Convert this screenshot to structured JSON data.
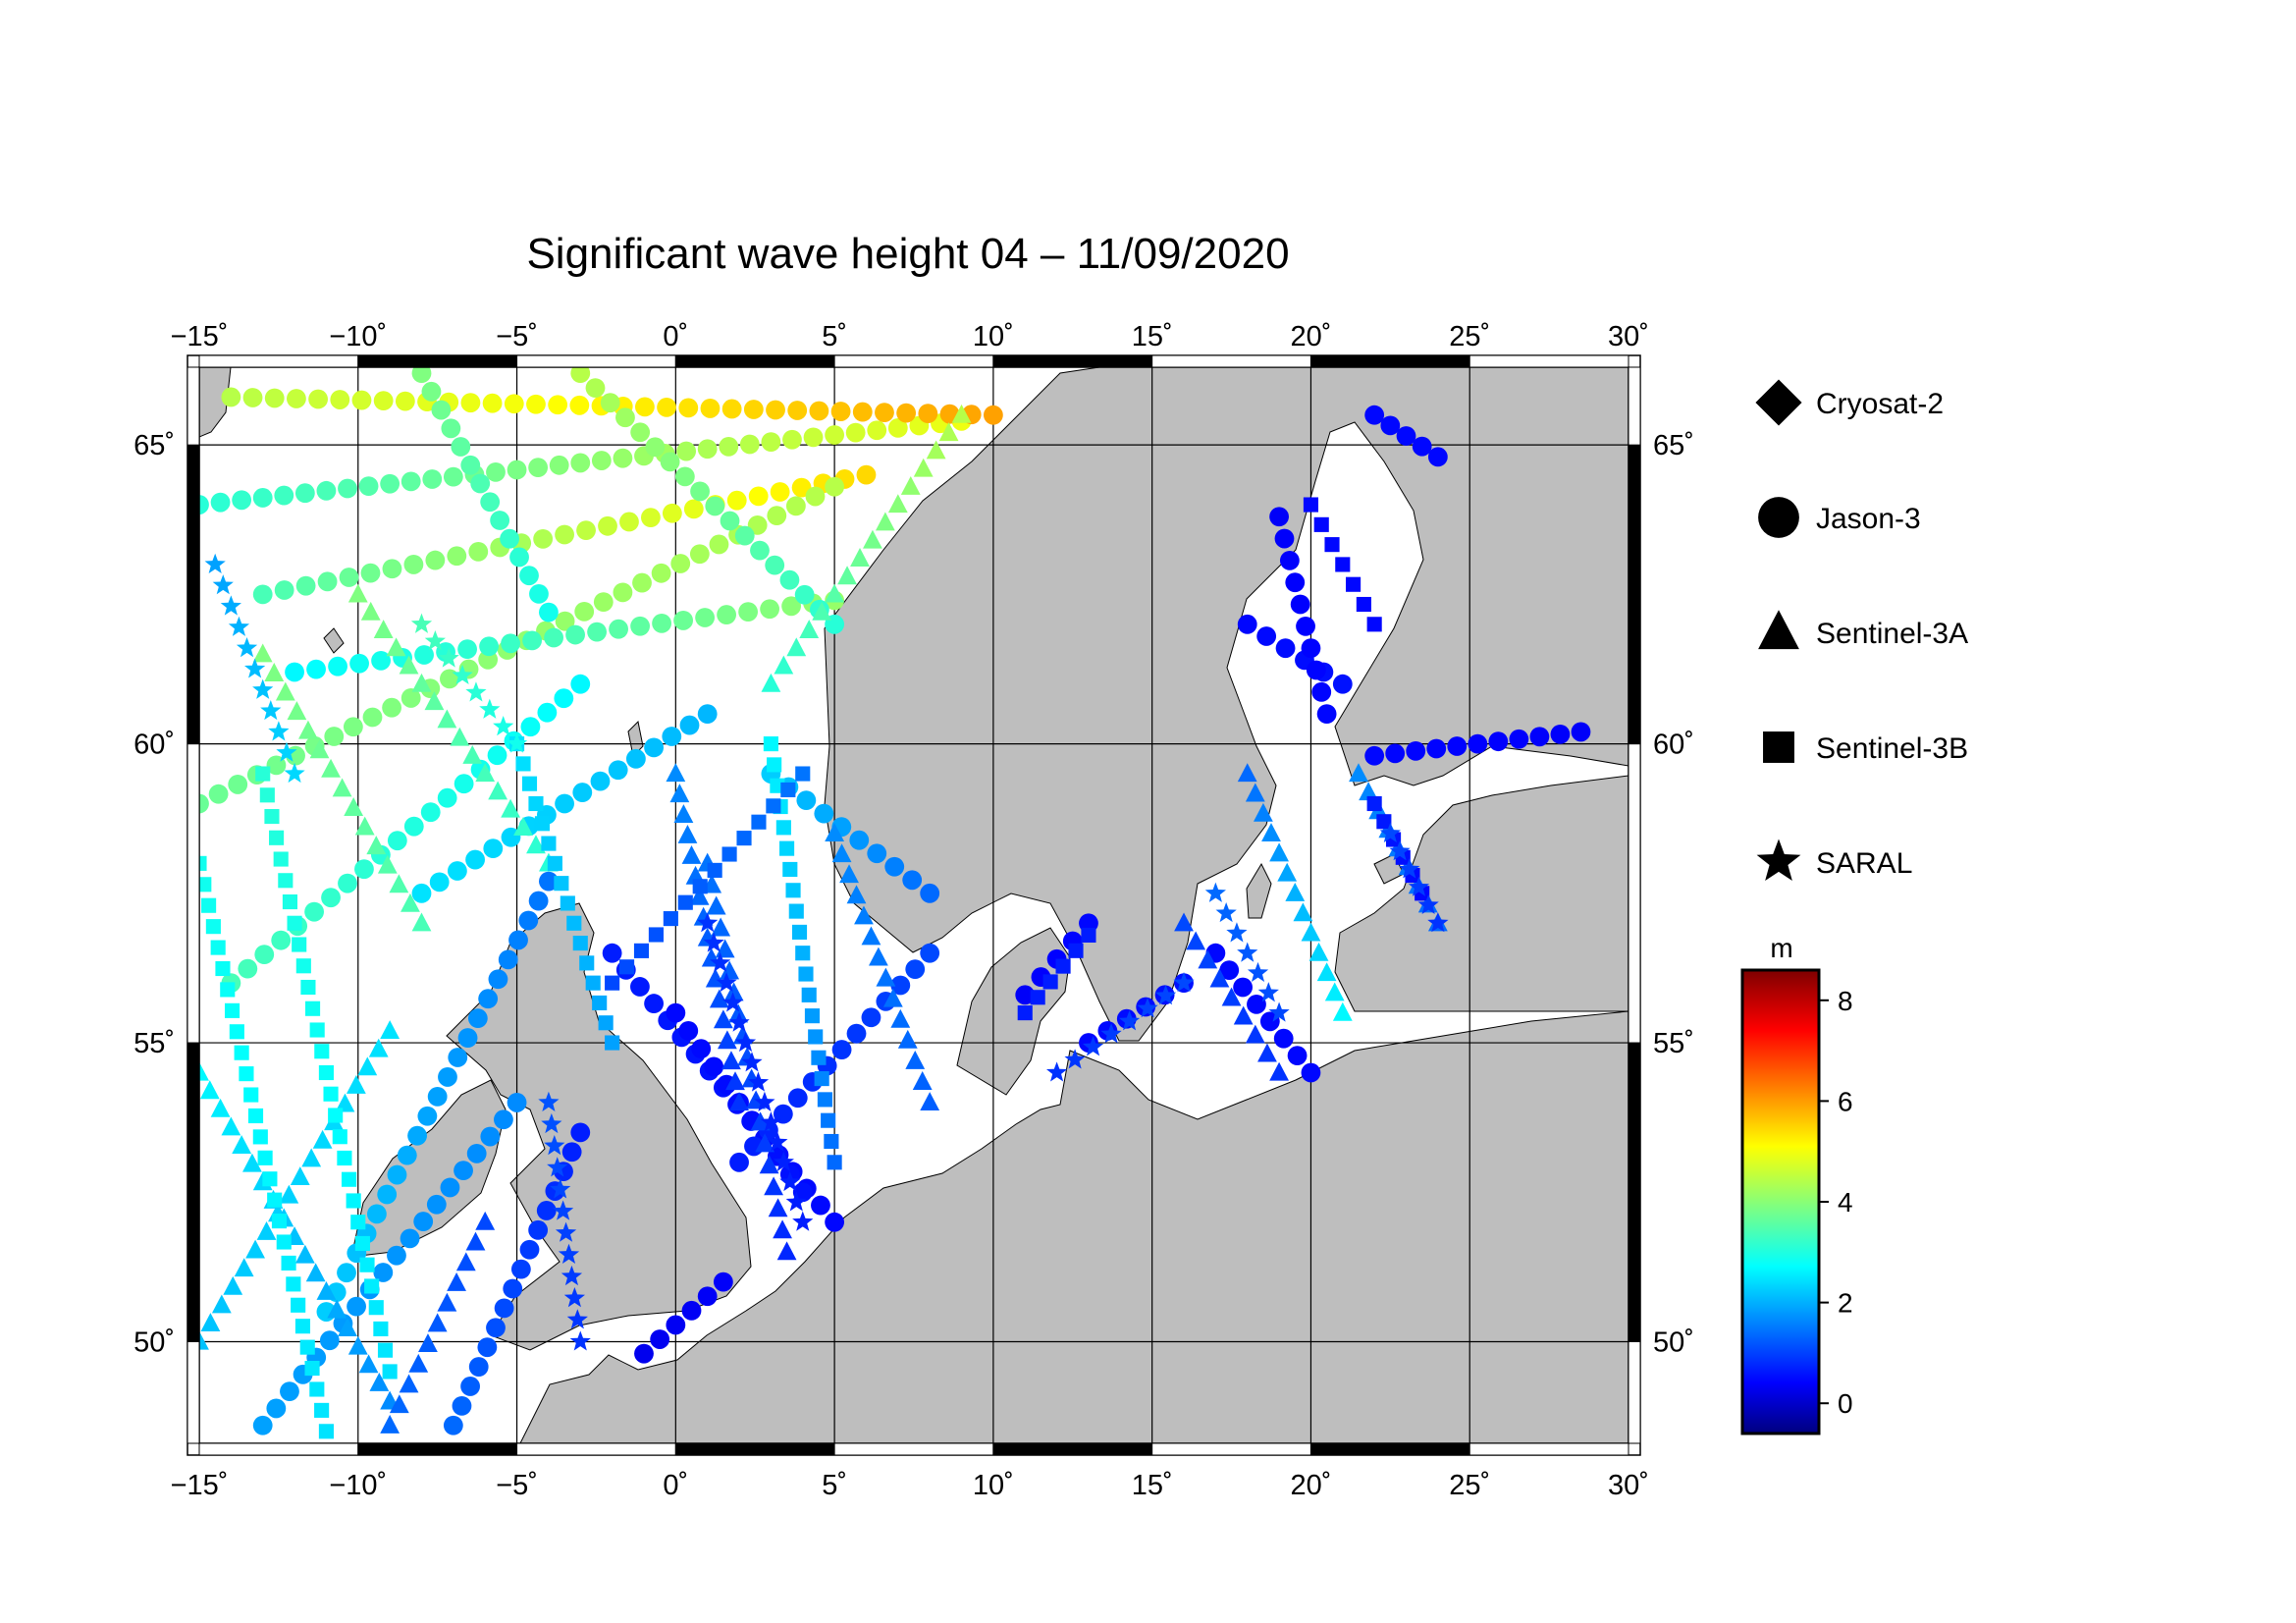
{
  "title": "Significant wave height 04 – 11/09/2020",
  "map": {
    "lon_range": [
      -15,
      30
    ],
    "lat_range": [
      48.3,
      66.3
    ],
    "lon_ticks": [
      -15,
      -10,
      -5,
      0,
      5,
      10,
      15,
      20,
      25,
      30
    ],
    "lat_ticks": [
      50,
      55,
      60,
      65
    ],
    "lon_tick_labels": [
      "−15˚",
      "−10˚",
      "−5˚",
      "0˚",
      "5˚",
      "10˚",
      "15˚",
      "20˚",
      "25˚",
      "30˚"
    ],
    "lat_tick_labels": [
      "50˚",
      "55˚",
      "60˚",
      "65˚"
    ],
    "land_color": "#bebebe",
    "sea_color": "#ffffff",
    "grid": true
  },
  "legend": [
    {
      "name": "Cryosat-2",
      "symbol": "diamond"
    },
    {
      "name": "Jason-3",
      "symbol": "circle"
    },
    {
      "name": "Sentinel-3A",
      "symbol": "triangle"
    },
    {
      "name": "Sentinel-3B",
      "symbol": "square"
    },
    {
      "name": "SARAL",
      "symbol": "star"
    }
  ],
  "colorbar": {
    "unit": "m",
    "range": [
      -0.6,
      8.6
    ],
    "ticks": [
      0,
      2,
      4,
      6,
      8
    ],
    "tick_labels": [
      "0",
      "2",
      "4",
      "6",
      "8"
    ],
    "colormap": "jet"
  },
  "chart_data": {
    "type": "scatter",
    "x_label": "",
    "y_label": "",
    "tracks": [
      {
        "sat": "circle",
        "start": [
          -15,
          64.0
        ],
        "end": [
          9,
          65.4
        ],
        "h0": 3.2,
        "h1": 5.0
      },
      {
        "sat": "circle",
        "start": [
          -14,
          65.8
        ],
        "end": [
          10,
          65.5
        ],
        "h0": 4.5,
        "h1": 6.0
      },
      {
        "sat": "circle",
        "start": [
          -13,
          62.5
        ],
        "end": [
          6,
          64.5
        ],
        "h0": 3.5,
        "h1": 5.5
      },
      {
        "sat": "circle",
        "start": [
          -15,
          59.0
        ],
        "end": [
          5,
          64.3
        ],
        "h0": 3.8,
        "h1": 4.5
      },
      {
        "sat": "circle",
        "start": [
          -8,
          66.2
        ],
        "end": [
          -4,
          62.2
        ],
        "h0": 4.0,
        "h1": 3.0
      },
      {
        "sat": "circle",
        "start": [
          -12,
          61.2
        ],
        "end": [
          5,
          62.4
        ],
        "h0": 2.8,
        "h1": 4.2
      },
      {
        "sat": "circle",
        "start": [
          -3,
          66.2
        ],
        "end": [
          5,
          62.0
        ],
        "h0": 4.5,
        "h1": 3.2
      },
      {
        "sat": "circle",
        "start": [
          -11,
          50.5
        ],
        "end": [
          -4,
          57.7
        ],
        "h0": 2.4,
        "h1": 1.6
      },
      {
        "sat": "circle",
        "start": [
          -14,
          56.0
        ],
        "end": [
          -3,
          61.0
        ],
        "h0": 3.5,
        "h1": 2.8
      },
      {
        "sat": "circle",
        "start": [
          -13,
          48.6
        ],
        "end": [
          -5,
          54.0
        ],
        "h0": 2.0,
        "h1": 1.8
      },
      {
        "sat": "circle",
        "start": [
          -8,
          57.5
        ],
        "end": [
          1,
          60.5
        ],
        "h0": 2.6,
        "h1": 2.2
      },
      {
        "sat": "circle",
        "start": [
          -7,
          48.6
        ],
        "end": [
          -3,
          53.5
        ],
        "h0": 1.5,
        "h1": 0.8
      },
      {
        "sat": "circle",
        "start": [
          -2,
          56.5
        ],
        "end": [
          5,
          52.0
        ],
        "h0": 0.8,
        "h1": 0.6
      },
      {
        "sat": "circle",
        "start": [
          0,
          55.5
        ],
        "end": [
          4,
          52.5
        ],
        "h0": 0.6,
        "h1": 0.7
      },
      {
        "sat": "circle",
        "start": [
          2,
          53.0
        ],
        "end": [
          8,
          56.5
        ],
        "h0": 0.8,
        "h1": 1.2
      },
      {
        "sat": "circle",
        "start": [
          3,
          59.5
        ],
        "end": [
          8,
          57.5
        ],
        "h0": 2.4,
        "h1": 1.5
      },
      {
        "sat": "circle",
        "start": [
          -1,
          49.8
        ],
        "end": [
          1.5,
          51.0
        ],
        "h0": 0.4,
        "h1": 0.5
      },
      {
        "sat": "circle",
        "start": [
          11,
          55.8
        ],
        "end": [
          13,
          57.0
        ],
        "h0": 0.5,
        "h1": 0.6
      },
      {
        "sat": "circle",
        "start": [
          13,
          55.0
        ],
        "end": [
          16,
          56.0
        ],
        "h0": 0.6,
        "h1": 0.7
      },
      {
        "sat": "circle",
        "start": [
          17,
          56.5
        ],
        "end": [
          20,
          54.5
        ],
        "h0": 0.6,
        "h1": 0.6
      },
      {
        "sat": "circle",
        "start": [
          22,
          59.8
        ],
        "end": [
          28.5,
          60.2
        ],
        "h0": 0.6,
        "h1": 0.5
      },
      {
        "sat": "circle",
        "start": [
          18,
          62.0
        ],
        "end": [
          21,
          61.0
        ],
        "h0": 0.6,
        "h1": 0.7
      },
      {
        "sat": "circle",
        "start": [
          22,
          65.5
        ],
        "end": [
          24,
          64.8
        ],
        "h0": 0.6,
        "h1": 0.6
      },
      {
        "sat": "circle",
        "start": [
          19,
          63.8
        ],
        "end": [
          20.5,
          60.5
        ],
        "h0": 0.5,
        "h1": 0.6
      },
      {
        "sat": "triangle",
        "start": [
          -15,
          50.0
        ],
        "end": [
          -9,
          55.2
        ],
        "h0": 2.3,
        "h1": 2.6
      },
      {
        "sat": "triangle",
        "start": [
          -15,
          54.5
        ],
        "end": [
          -9,
          49.0
        ],
        "h0": 2.8,
        "h1": 1.8
      },
      {
        "sat": "triangle",
        "start": [
          -9,
          48.6
        ],
        "end": [
          -6,
          52.0
        ],
        "h0": 1.5,
        "h1": 1.2
      },
      {
        "sat": "triangle",
        "start": [
          -13,
          61.5
        ],
        "end": [
          -8,
          57.0
        ],
        "h0": 4.0,
        "h1": 3.5
      },
      {
        "sat": "triangle",
        "start": [
          -10,
          62.5
        ],
        "end": [
          -4,
          58.0
        ],
        "h0": 4.0,
        "h1": 3.2
      },
      {
        "sat": "triangle",
        "start": [
          0,
          59.5
        ],
        "end": [
          2,
          54.0
        ],
        "h0": 1.8,
        "h1": 1.0
      },
      {
        "sat": "triangle",
        "start": [
          1,
          58.0
        ],
        "end": [
          3.5,
          51.5
        ],
        "h0": 1.6,
        "h1": 0.9
      },
      {
        "sat": "triangle",
        "start": [
          5,
          58.5
        ],
        "end": [
          8,
          54.0
        ],
        "h0": 1.8,
        "h1": 1.4
      },
      {
        "sat": "triangle",
        "start": [
          18,
          59.5
        ],
        "end": [
          21,
          55.5
        ],
        "h0": 1.5,
        "h1": 2.8
      },
      {
        "sat": "triangle",
        "start": [
          21.5,
          59.5
        ],
        "end": [
          24,
          57.0
        ],
        "h0": 1.8,
        "h1": 1.5
      },
      {
        "sat": "triangle",
        "start": [
          16,
          57.0
        ],
        "end": [
          19,
          54.5
        ],
        "h0": 1.2,
        "h1": 1.0
      },
      {
        "sat": "triangle",
        "start": [
          3,
          61.0
        ],
        "end": [
          9,
          65.5
        ],
        "h0": 3.2,
        "h1": 4.5
      },
      {
        "sat": "square",
        "start": [
          -15,
          58.0
        ],
        "end": [
          -11,
          48.5
        ],
        "h0": 3.0,
        "h1": 2.6
      },
      {
        "sat": "square",
        "start": [
          -13,
          59.5
        ],
        "end": [
          -9,
          49.5
        ],
        "h0": 3.2,
        "h1": 2.6
      },
      {
        "sat": "square",
        "start": [
          -5,
          60.0
        ],
        "end": [
          -2,
          55.0
        ],
        "h0": 2.6,
        "h1": 2.0
      },
      {
        "sat": "square",
        "start": [
          3,
          60.0
        ],
        "end": [
          5,
          53.0
        ],
        "h0": 2.8,
        "h1": 1.5
      },
      {
        "sat": "square",
        "start": [
          -2,
          56.0
        ],
        "end": [
          4,
          59.5
        ],
        "h0": 1.2,
        "h1": 1.6
      },
      {
        "sat": "square",
        "start": [
          11,
          55.5
        ],
        "end": [
          13,
          56.8
        ],
        "h0": 0.8,
        "h1": 0.8
      },
      {
        "sat": "square",
        "start": [
          20,
          64.0
        ],
        "end": [
          22,
          62.0
        ],
        "h0": 0.6,
        "h1": 0.6
      },
      {
        "sat": "square",
        "start": [
          22,
          59.0
        ],
        "end": [
          23.5,
          57.5
        ],
        "h0": 0.8,
        "h1": 0.6
      },
      {
        "sat": "star",
        "start": [
          -14.5,
          63.0
        ],
        "end": [
          -12,
          59.5
        ],
        "h0": 2.0,
        "h1": 2.5
      },
      {
        "sat": "star",
        "start": [
          -8,
          62.0
        ],
        "end": [
          -5,
          60.0
        ],
        "h0": 3.5,
        "h1": 3.0
      },
      {
        "sat": "star",
        "start": [
          1,
          57.0
        ],
        "end": [
          4,
          52.0
        ],
        "h0": 1.0,
        "h1": 0.8
      },
      {
        "sat": "star",
        "start": [
          12,
          54.5
        ],
        "end": [
          16,
          56.0
        ],
        "h0": 1.0,
        "h1": 1.2
      },
      {
        "sat": "star",
        "start": [
          17,
          57.5
        ],
        "end": [
          19,
          55.5
        ],
        "h0": 1.5,
        "h1": 1.2
      },
      {
        "sat": "star",
        "start": [
          22.5,
          58.5
        ],
        "end": [
          24,
          57.0
        ],
        "h0": 1.2,
        "h1": 1.0
      },
      {
        "sat": "star",
        "start": [
          -4,
          54.0
        ],
        "end": [
          -3,
          50.0
        ],
        "h0": 1.3,
        "h1": 1.0
      }
    ]
  }
}
